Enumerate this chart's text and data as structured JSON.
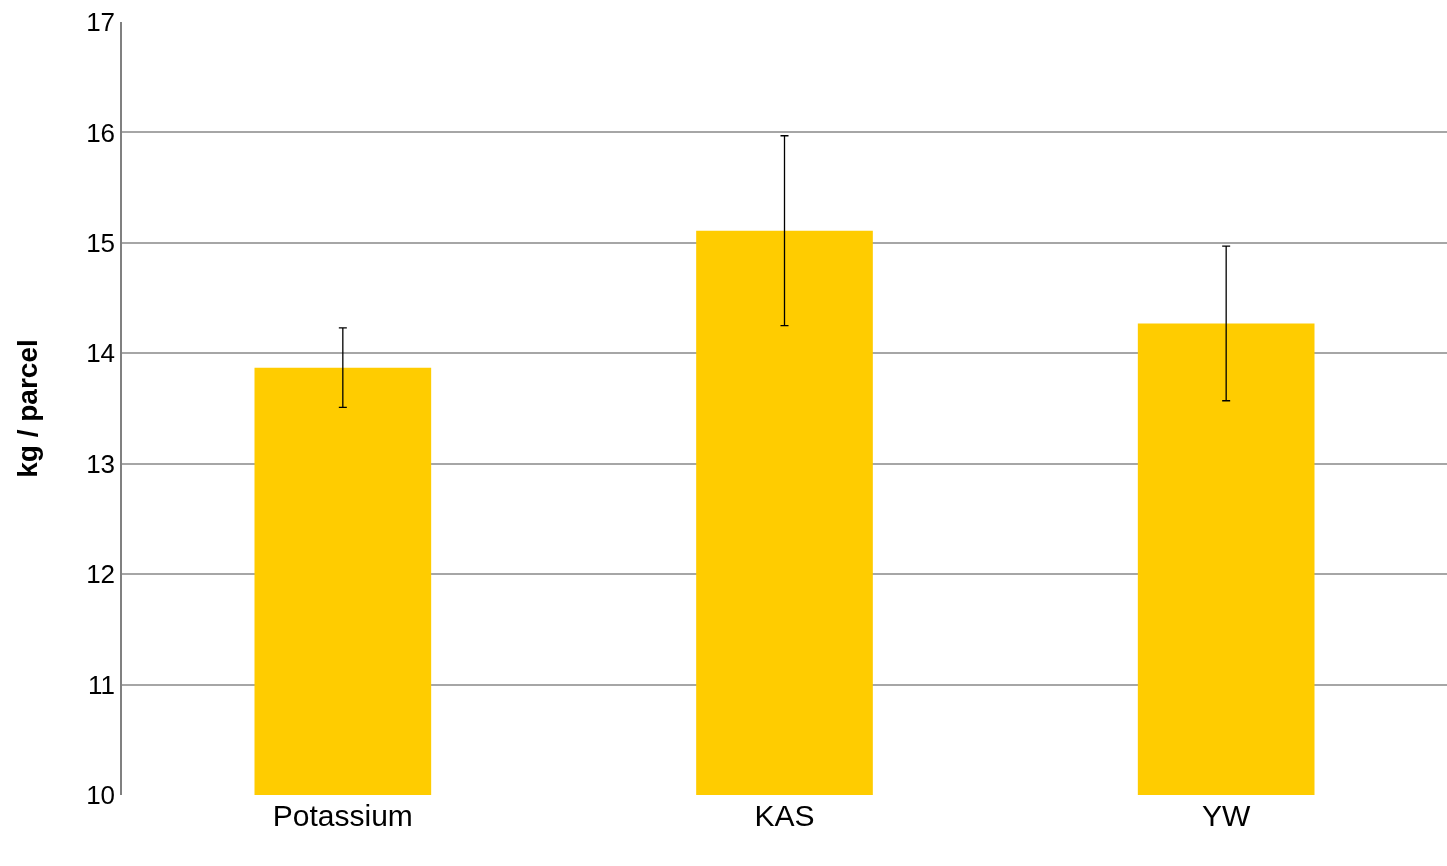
{
  "chart_data": {
    "type": "bar",
    "ylabel": "kg / parcel",
    "categories": [
      "Potassium",
      "KAS",
      "YW"
    ],
    "values": [
      13.87,
      15.11,
      14.27
    ],
    "errors": [
      0.36,
      0.86,
      0.7
    ],
    "color": "#ffcc00",
    "ylim": [
      10,
      17
    ],
    "yticks": [
      10,
      11,
      12,
      13,
      14,
      15,
      16,
      17
    ],
    "grid": "y",
    "legend": false
  }
}
